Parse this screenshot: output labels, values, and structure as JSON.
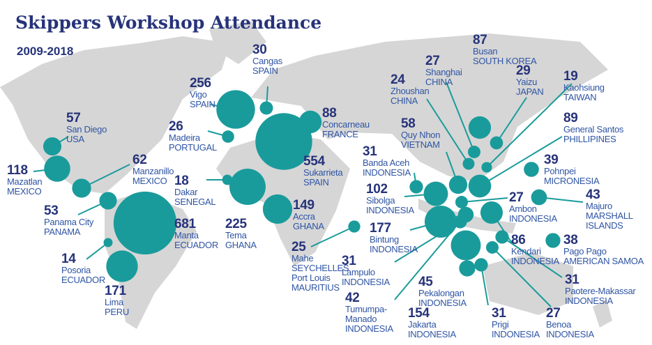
{
  "title": "Skippers Workshop Attendance",
  "subtitle": "2009-2018",
  "locations": [
    {
      "value": 57,
      "places": [
        {
          "city": "San Diego",
          "country": "USA"
        }
      ]
    },
    {
      "value": 118,
      "places": [
        {
          "city": "Mazatlan",
          "country": "MEXICO"
        }
      ]
    },
    {
      "value": 62,
      "places": [
        {
          "city": "Manzanillo",
          "country": "MEXICO"
        }
      ]
    },
    {
      "value": 53,
      "places": [
        {
          "city": "Panama City",
          "country": "PANAMA"
        }
      ]
    },
    {
      "value": 681,
      "places": [
        {
          "city": "Manta",
          "country": "ECUADOR"
        }
      ]
    },
    {
      "value": 14,
      "places": [
        {
          "city": "Posoria",
          "country": "ECUADOR"
        }
      ]
    },
    {
      "value": 171,
      "places": [
        {
          "city": "Lima",
          "country": "PERU"
        }
      ]
    },
    {
      "value": 30,
      "places": [
        {
          "city": "Cangas",
          "country": "SPAIN"
        }
      ]
    },
    {
      "value": 256,
      "places": [
        {
          "city": "Vigo",
          "country": "SPAIN"
        }
      ]
    },
    {
      "value": 26,
      "places": [
        {
          "city": "Madeira",
          "country": "PORTUGAL"
        }
      ]
    },
    {
      "value": 554,
      "places": [
        {
          "city": "Sukarrieta",
          "country": "SPAIN"
        }
      ]
    },
    {
      "value": 88,
      "places": [
        {
          "city": "Concarneau",
          "country": "FRANCE"
        }
      ]
    },
    {
      "value": 18,
      "places": [
        {
          "city": "Dakar",
          "country": "SENEGAL"
        }
      ]
    },
    {
      "value": 225,
      "places": [
        {
          "city": "Tema",
          "country": "GHANA"
        }
      ]
    },
    {
      "value": 149,
      "places": [
        {
          "city": "Accra",
          "country": "GHANA"
        }
      ]
    },
    {
      "value": 25,
      "places": [
        {
          "city": "Mahe",
          "country": "SEYCHELLES"
        },
        {
          "city": "Port Louis",
          "country": "MAURITIUS"
        }
      ]
    },
    {
      "value": 102,
      "places": [
        {
          "city": "Sibolga",
          "country": "INDONESIA"
        }
      ]
    },
    {
      "value": 31,
      "places": [
        {
          "city": "Banda Aceh",
          "country": "INDONESIA"
        }
      ]
    },
    {
      "value": 177,
      "places": [
        {
          "city": "Bintung",
          "country": "INDONESIA"
        }
      ]
    },
    {
      "value": 31,
      "places": [
        {
          "city": "Lampulo",
          "country": "INDONESIA"
        }
      ]
    },
    {
      "value": 42,
      "places": [
        {
          "city": "Tumumpa-Manado",
          "country": "INDONESIA"
        }
      ]
    },
    {
      "value": 154,
      "places": [
        {
          "city": "Jakarta",
          "country": "INDONESIA"
        }
      ]
    },
    {
      "value": 45,
      "places": [
        {
          "city": "Pekalongan",
          "country": "INDONESIA"
        }
      ]
    },
    {
      "value": 31,
      "places": [
        {
          "city": "Prigi",
          "country": "INDONESIA"
        }
      ]
    },
    {
      "value": 27,
      "places": [
        {
          "city": "Benoa",
          "country": "INDONESIA"
        }
      ]
    },
    {
      "value": 31,
      "places": [
        {
          "city": "Paotere-Makassar",
          "country": "INDONESIA"
        }
      ]
    },
    {
      "value": 86,
      "places": [
        {
          "city": "Kendari",
          "country": "INDONESIA"
        }
      ]
    },
    {
      "value": 27,
      "places": [
        {
          "city": "Ambon",
          "country": "INDONESIA"
        }
      ]
    },
    {
      "value": 38,
      "places": [
        {
          "city": "Pago Pago",
          "country": "AMERICAN SAMOA"
        }
      ]
    },
    {
      "value": 43,
      "places": [
        {
          "city": "Majuro",
          "country": "MARSHALL ISLANDS"
        }
      ]
    },
    {
      "value": 39,
      "places": [
        {
          "city": "Pohnpei",
          "country": "MICRONESIA"
        }
      ]
    },
    {
      "value": 89,
      "places": [
        {
          "city": "General Santos",
          "country": "PHILLIPINES"
        }
      ]
    },
    {
      "value": 19,
      "places": [
        {
          "city": "Kaohsiung",
          "country": "TAIWAN"
        }
      ]
    },
    {
      "value": 29,
      "places": [
        {
          "city": "Yaizu",
          "country": "JAPAN"
        }
      ]
    },
    {
      "value": 87,
      "places": [
        {
          "city": "Busan",
          "country": "SOUTH KOREA"
        }
      ]
    },
    {
      "value": 27,
      "places": [
        {
          "city": "Shanghai",
          "country": "CHINA"
        }
      ]
    },
    {
      "value": 24,
      "places": [
        {
          "city": "Zhoushan",
          "country": "CHINA"
        }
      ]
    },
    {
      "value": 58,
      "places": [
        {
          "city": "Quy Nhon",
          "country": "VIETNAM"
        }
      ]
    }
  ]
}
